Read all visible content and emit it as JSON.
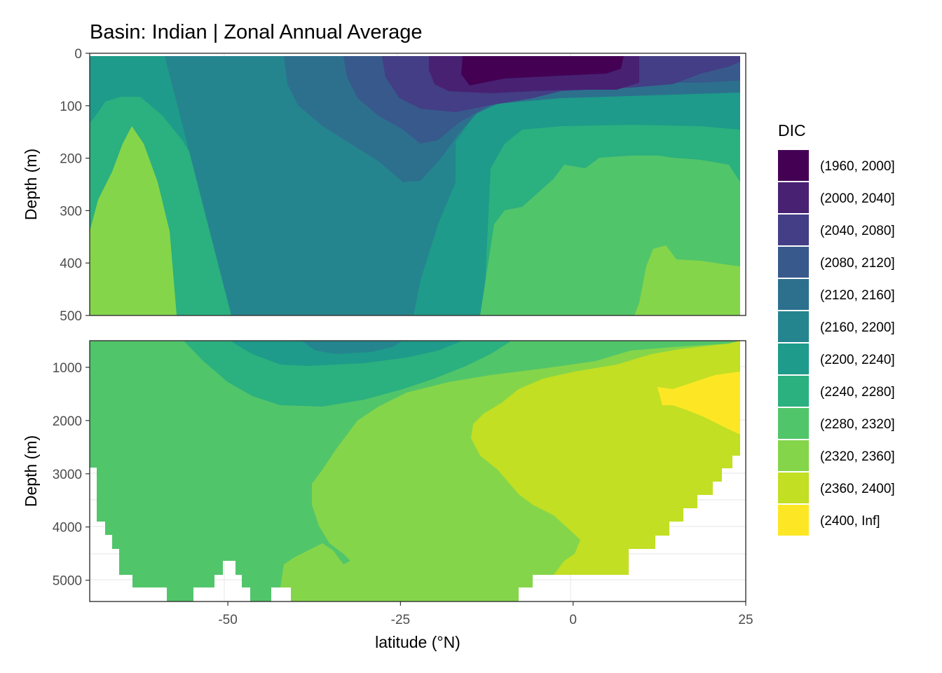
{
  "chart_data": {
    "type": "heatmap",
    "title": "Basin: Indian | Zonal Annual Average",
    "xlabel": "latitude (°N)",
    "ylabel": "Depth (m)",
    "xlim": [
      -70,
      25
    ],
    "x_ticks": [
      -50,
      -25,
      0,
      25
    ],
    "x_tick_labels": [
      "-50",
      "-25",
      "0",
      "25"
    ],
    "panels": [
      {
        "name": "upper",
        "ylim": [
          500,
          0
        ],
        "y_ticks": [
          0,
          100,
          200,
          300,
          400,
          500
        ],
        "y_tick_labels": [
          "0",
          "100",
          "200",
          "300",
          "400",
          "500"
        ]
      },
      {
        "name": "lower",
        "ylim": [
          5400,
          500
        ],
        "y_ticks": [
          1000,
          2000,
          3000,
          4000,
          5000
        ],
        "y_tick_labels": [
          "1000",
          "2000",
          "3000",
          "4000",
          "5000"
        ]
      }
    ],
    "legend": {
      "title": "DIC",
      "position": "right",
      "entries": [
        {
          "label": "(1960, 2000]",
          "color": "#440154"
        },
        {
          "label": "(2000, 2040]",
          "color": "#482173"
        },
        {
          "label": "(2040, 2080]",
          "color": "#433E85"
        },
        {
          "label": "(2080, 2120]",
          "color": "#38598C"
        },
        {
          "label": "(2120, 2160]",
          "color": "#2D708E"
        },
        {
          "label": "(2160, 2200]",
          "color": "#25858E"
        },
        {
          "label": "(2200, 2240]",
          "color": "#1E9B8A"
        },
        {
          "label": "(2240, 2280]",
          "color": "#2BB07F"
        },
        {
          "label": "(2280, 2320]",
          "color": "#51C56A"
        },
        {
          "label": "(2320, 2360]",
          "color": "#85D54A"
        },
        {
          "label": "(2360, 2400]",
          "color": "#C2DF23"
        },
        {
          "label": "(2400, Inf]",
          "color": "#FDE725"
        }
      ]
    },
    "grid": true
  }
}
